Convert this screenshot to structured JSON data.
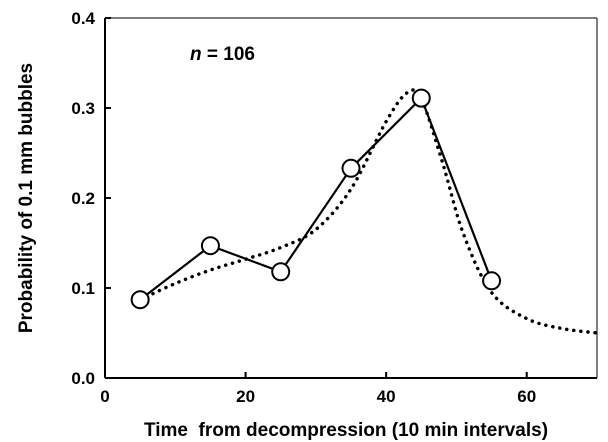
{
  "chart_data": {
    "type": "line",
    "title": "",
    "xlabel": "Time  from decompression (10 min intervals)",
    "ylabel": "Probability of 0.1 mm bubbles",
    "xlim": [
      0,
      70
    ],
    "ylim": [
      0.0,
      0.4
    ],
    "x_ticks": [
      "0",
      "20",
      "40",
      "60"
    ],
    "y_ticks": [
      "0.0",
      "0.1",
      "0.2",
      "0.3",
      "0.4"
    ],
    "grid": false,
    "annotation": {
      "italic": "n",
      "rest": " = 106"
    },
    "series": [
      {
        "style": "solid-with-open-circles",
        "x": [
          5,
          15,
          25,
          35,
          45,
          55
        ],
        "y": [
          0.087,
          0.147,
          0.118,
          0.233,
          0.311,
          0.108
        ]
      },
      {
        "style": "dotted-fit",
        "x": [
          5,
          10,
          15,
          20,
          25,
          30,
          35,
          40,
          43,
          45,
          48,
          51,
          55,
          60,
          65,
          70
        ],
        "y": [
          0.087,
          0.105,
          0.12,
          0.132,
          0.145,
          0.165,
          0.21,
          0.285,
          0.317,
          0.31,
          0.24,
          0.16,
          0.095,
          0.066,
          0.055,
          0.05
        ]
      }
    ]
  }
}
